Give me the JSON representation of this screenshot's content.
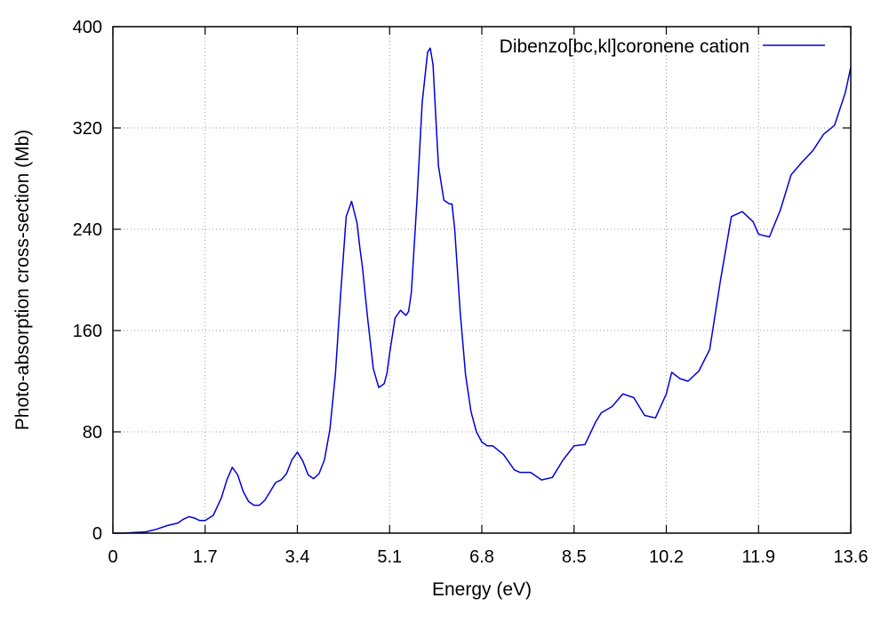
{
  "chart_data": {
    "type": "line",
    "xlabel": "Energy (eV)",
    "ylabel": "Photo-absorption cross-section (Mb)",
    "xlim": [
      0,
      13.6
    ],
    "ylim": [
      0,
      400
    ],
    "xticks": [
      "0",
      "1.7",
      "3.4",
      "5.1",
      "6.8",
      "8.5",
      "10.2",
      "11.9",
      "13.6"
    ],
    "yticks": [
      "0",
      "80",
      "160",
      "240",
      "320",
      "400"
    ],
    "grid": true,
    "legend_position": "top-right",
    "colors": {
      "series": "#0000dd",
      "grid": "#999999",
      "axis": "#000000"
    },
    "series": [
      {
        "name": "Dibenzo[bc,kl]coronene cation",
        "x": [
          0.0,
          0.2,
          0.4,
          0.6,
          0.8,
          1.0,
          1.2,
          1.3,
          1.4,
          1.5,
          1.6,
          1.7,
          1.85,
          2.0,
          2.1,
          2.2,
          2.3,
          2.4,
          2.5,
          2.6,
          2.7,
          2.8,
          2.9,
          3.0,
          3.1,
          3.2,
          3.3,
          3.4,
          3.5,
          3.6,
          3.7,
          3.8,
          3.9,
          4.0,
          4.1,
          4.2,
          4.3,
          4.4,
          4.5,
          4.55,
          4.6,
          4.7,
          4.8,
          4.9,
          5.0,
          5.05,
          5.1,
          5.2,
          5.3,
          5.4,
          5.45,
          5.5,
          5.6,
          5.7,
          5.8,
          5.85,
          5.9,
          5.95,
          6.0,
          6.1,
          6.2,
          6.25,
          6.3,
          6.4,
          6.5,
          6.6,
          6.7,
          6.8,
          6.9,
          7.0,
          7.2,
          7.4,
          7.5,
          7.7,
          7.9,
          8.1,
          8.3,
          8.5,
          8.7,
          8.9,
          9.0,
          9.2,
          9.4,
          9.6,
          9.8,
          10.0,
          10.2,
          10.3,
          10.45,
          10.6,
          10.8,
          11.0,
          11.2,
          11.4,
          11.6,
          11.8,
          11.9,
          12.1,
          12.3,
          12.5,
          12.7,
          12.9,
          13.1,
          13.3,
          13.5,
          13.6
        ],
        "values": [
          0,
          0,
          0.5,
          1,
          3,
          6,
          8,
          11,
          13,
          12,
          10,
          10,
          14,
          28,
          42,
          52,
          46,
          33,
          25,
          22,
          22,
          26,
          33,
          40,
          42,
          47,
          58,
          64,
          57,
          46,
          43,
          47,
          58,
          82,
          125,
          190,
          250,
          262,
          245,
          226,
          210,
          168,
          130,
          115,
          118,
          126,
          142,
          170,
          176,
          172,
          175,
          190,
          260,
          340,
          380,
          383,
          370,
          330,
          290,
          263,
          260,
          260,
          240,
          175,
          125,
          96,
          80,
          72,
          69,
          69,
          62,
          50,
          48,
          48,
          42,
          44,
          58,
          69,
          70,
          88,
          95,
          100,
          110,
          107,
          93,
          91,
          110,
          127,
          122,
          120,
          128,
          145,
          200,
          250,
          254,
          246,
          236,
          234,
          255,
          283,
          293,
          302,
          315,
          322,
          348,
          368
        ]
      }
    ]
  }
}
